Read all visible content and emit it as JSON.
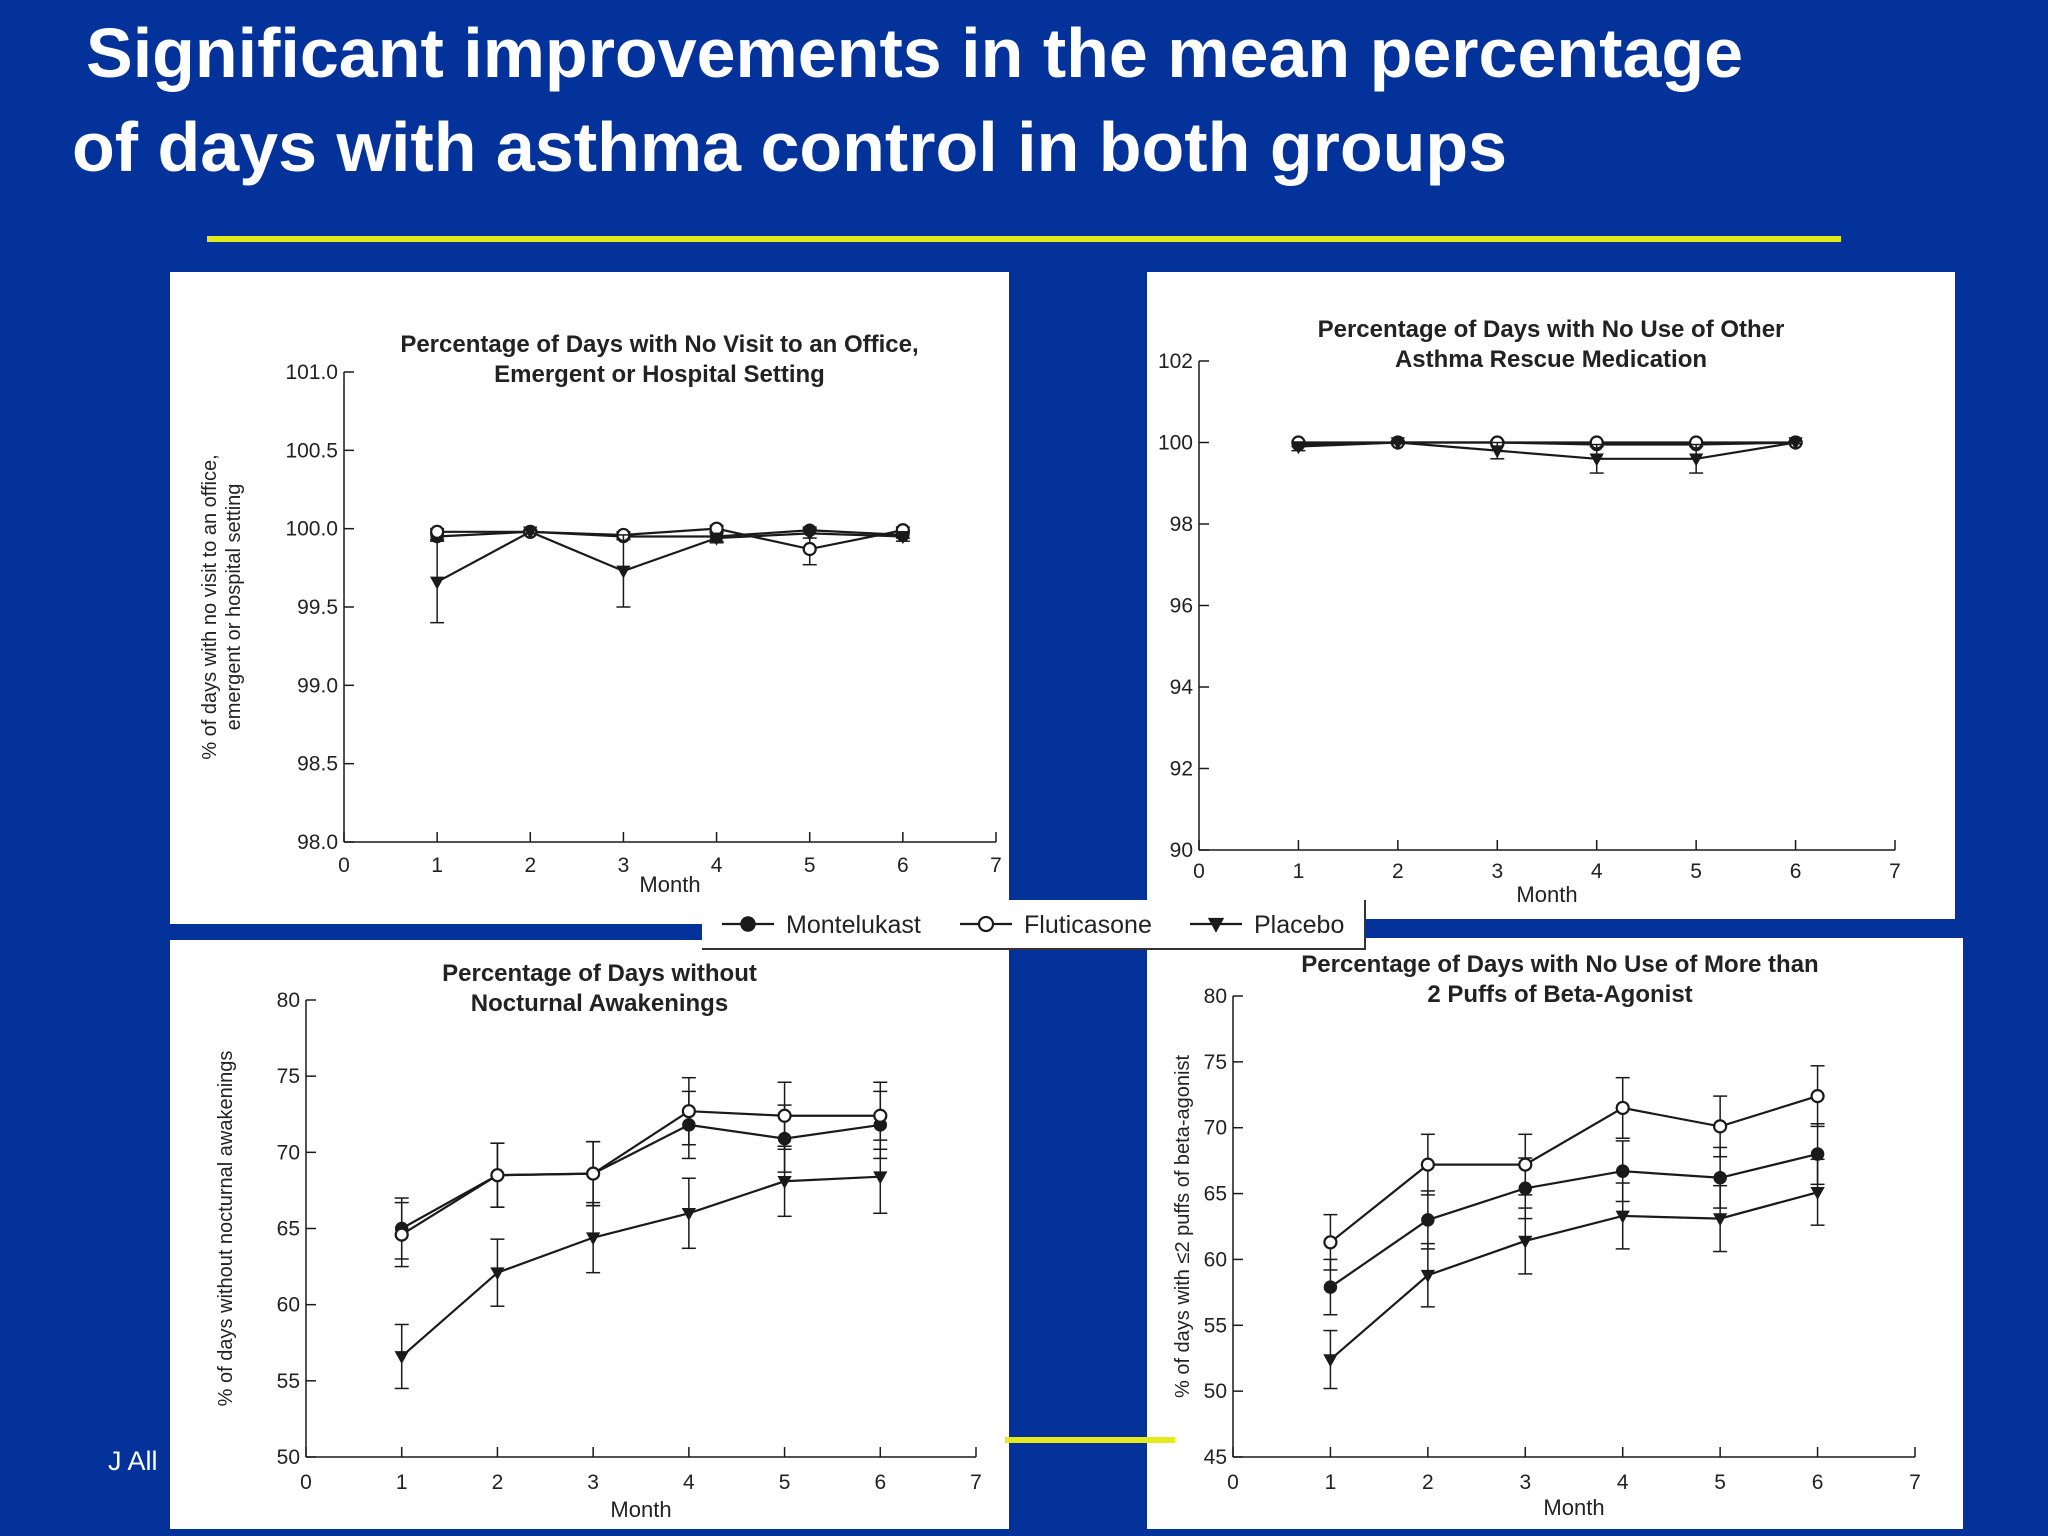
{
  "slide": {
    "title_line1": "Significant improvements in the mean percentage",
    "title_line2": "of days with asthma control in both groups",
    "citation": "J All",
    "colors": {
      "background": "#03339A",
      "accent_rule": "#E5EA1F",
      "text": "#FFFFFF"
    }
  },
  "legend": {
    "entries": [
      {
        "name": "Montelukast",
        "marker": "filled-circle"
      },
      {
        "name": "Fluticasone",
        "marker": "open-circle"
      },
      {
        "name": "Placebo",
        "marker": "filled-triangle-down"
      }
    ]
  },
  "chart_data": [
    {
      "id": "office-visit",
      "type": "line",
      "title_line1": "Percentage of Days with No Visit to an Office,",
      "title_line2": "Emergent or Hospital Setting",
      "xlabel": "Month",
      "ylabel_line1": "% of days with no visit to an office,",
      "ylabel_line2": "emergent or hospital setting",
      "xlim": [
        0,
        7
      ],
      "ylim": [
        98.0,
        101.0
      ],
      "xticks": [
        0,
        1,
        2,
        3,
        4,
        5,
        6,
        7
      ],
      "yticks": [
        98.0,
        98.5,
        99.0,
        99.5,
        100.0,
        100.5,
        101.0
      ],
      "ytick_labels": [
        "98.0",
        "98.5",
        "99.0",
        "99.5",
        "100.0",
        "100.5",
        "101.0"
      ],
      "x": [
        1,
        2,
        3,
        4,
        5,
        6
      ],
      "series": [
        {
          "name": "Montelukast",
          "values": [
            99.95,
            99.98,
            99.95,
            99.95,
            99.99,
            99.96
          ],
          "err": [
            0.02,
            0.01,
            0.02,
            0.03,
            0.02,
            0.02
          ]
        },
        {
          "name": "Fluticasone",
          "values": [
            99.98,
            99.98,
            99.96,
            100.0,
            99.87,
            99.99
          ],
          "err": [
            0.02,
            0.01,
            0.02,
            0.02,
            0.1,
            0.02
          ]
        },
        {
          "name": "Placebo",
          "values": [
            99.66,
            99.98,
            99.73,
            99.94,
            99.97,
            99.95
          ],
          "err": [
            0.26,
            0.01,
            0.23,
            0.03,
            0.03,
            0.03
          ]
        }
      ]
    },
    {
      "id": "rescue-medication",
      "type": "line",
      "title_line1": "Percentage of Days with No Use of Other",
      "title_line2": "Asthma Rescue Medication",
      "xlabel": "Month",
      "ylabel_line1": "",
      "ylabel_line2": "",
      "xlim": [
        0,
        7
      ],
      "ylim": [
        90,
        102
      ],
      "xticks": [
        0,
        1,
        2,
        3,
        4,
        5,
        6,
        7
      ],
      "yticks": [
        90,
        92,
        94,
        96,
        98,
        100,
        102
      ],
      "ytick_labels": [
        "90",
        "92",
        "94",
        "96",
        "98",
        "100",
        "102"
      ],
      "x": [
        1,
        2,
        3,
        4,
        5,
        6
      ],
      "series": [
        {
          "name": "Montelukast",
          "values": [
            99.95,
            100.0,
            100.0,
            99.95,
            99.95,
            100.0
          ],
          "err": [
            0.05,
            0.03,
            0.05,
            0.05,
            0.05,
            0.03
          ]
        },
        {
          "name": "Fluticasone",
          "values": [
            100.0,
            100.0,
            100.0,
            100.0,
            100.0,
            100.0
          ],
          "err": [
            0.03,
            0.03,
            0.03,
            0.03,
            0.03,
            0.03
          ]
        },
        {
          "name": "Placebo",
          "values": [
            99.9,
            100.0,
            99.8,
            99.6,
            99.6,
            100.0
          ],
          "err": [
            0.1,
            0.03,
            0.2,
            0.35,
            0.35,
            0.03
          ]
        }
      ]
    },
    {
      "id": "nocturnal-awakenings",
      "type": "line",
      "title_line1": "Percentage of Days without",
      "title_line2": "Nocturnal Awakenings",
      "xlabel": "Month",
      "ylabel_line1": "% of days without nocturnal awakenings",
      "ylabel_line2": "",
      "xlim": [
        0,
        7
      ],
      "ylim": [
        50,
        80
      ],
      "xticks": [
        0,
        1,
        2,
        3,
        4,
        5,
        6,
        7
      ],
      "yticks": [
        50,
        55,
        60,
        65,
        70,
        75,
        80
      ],
      "ytick_labels": [
        "50",
        "55",
        "60",
        "65",
        "70",
        "75",
        "80"
      ],
      "x": [
        1,
        2,
        3,
        4,
        5,
        6
      ],
      "series": [
        {
          "name": "Montelukast",
          "values": [
            65.0,
            68.5,
            68.6,
            71.8,
            70.9,
            71.8
          ],
          "err": [
            2.0,
            2.1,
            2.1,
            2.2,
            2.2,
            2.2
          ]
        },
        {
          "name": "Fluticasone",
          "values": [
            64.6,
            68.5,
            68.6,
            72.7,
            72.4,
            72.4
          ],
          "err": [
            2.1,
            2.1,
            2.1,
            2.2,
            2.2,
            2.2
          ]
        },
        {
          "name": "Placebo",
          "values": [
            56.6,
            62.1,
            64.4,
            66.0,
            68.1,
            68.4
          ],
          "err": [
            2.1,
            2.2,
            2.3,
            2.3,
            2.3,
            2.4
          ]
        }
      ]
    },
    {
      "id": "beta-agonist",
      "type": "line",
      "title_line1": "Percentage of Days with No Use of More than",
      "title_line2": "2 Puffs of Beta-Agonist",
      "xlabel": "Month",
      "ylabel_line1": "% of days with ≤2 puffs of beta-agonist",
      "ylabel_line2": "",
      "xlim": [
        0,
        7
      ],
      "ylim": [
        45,
        80
      ],
      "xticks": [
        0,
        1,
        2,
        3,
        4,
        5,
        6,
        7
      ],
      "yticks": [
        45,
        50,
        55,
        60,
        65,
        70,
        75,
        80
      ],
      "ytick_labels": [
        "45",
        "50",
        "55",
        "60",
        "65",
        "70",
        "75",
        "80"
      ],
      "x": [
        1,
        2,
        3,
        4,
        5,
        6
      ],
      "series": [
        {
          "name": "Montelukast",
          "values": [
            57.9,
            63.0,
            65.4,
            66.7,
            66.2,
            68.0
          ],
          "err": [
            2.1,
            2.2,
            2.3,
            2.3,
            2.3,
            2.3
          ]
        },
        {
          "name": "Fluticasone",
          "values": [
            61.3,
            67.2,
            67.2,
            71.5,
            70.1,
            72.4
          ],
          "err": [
            2.1,
            2.3,
            2.3,
            2.3,
            2.3,
            2.3
          ]
        },
        {
          "name": "Placebo",
          "values": [
            52.4,
            58.8,
            61.4,
            63.3,
            63.1,
            65.1
          ],
          "err": [
            2.2,
            2.4,
            2.5,
            2.5,
            2.5,
            2.5
          ]
        }
      ]
    }
  ]
}
